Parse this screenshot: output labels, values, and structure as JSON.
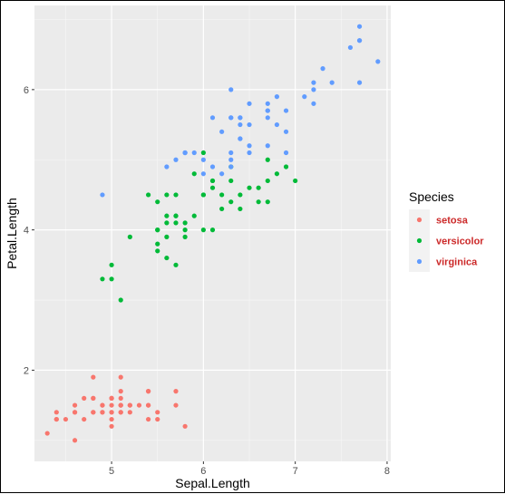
{
  "chart_data": {
    "type": "scatter",
    "title": "",
    "xlabel": "Sepal.Length",
    "ylabel": "Petal.Length",
    "xlim": [
      4.16,
      8.04
    ],
    "ylim": [
      0.7,
      7.2
    ],
    "x_ticks": [
      5,
      6,
      7,
      8
    ],
    "y_ticks": [
      2,
      4,
      6
    ],
    "grid": true,
    "legend": {
      "title": "Species",
      "position": "right"
    },
    "series": [
      {
        "name": "setosa",
        "color": "#F8766D",
        "points": [
          [
            5.1,
            1.4
          ],
          [
            4.9,
            1.4
          ],
          [
            4.7,
            1.3
          ],
          [
            4.6,
            1.5
          ],
          [
            5.0,
            1.4
          ],
          [
            5.4,
            1.7
          ],
          [
            4.6,
            1.4
          ],
          [
            5.0,
            1.5
          ],
          [
            4.4,
            1.4
          ],
          [
            4.9,
            1.5
          ],
          [
            5.4,
            1.5
          ],
          [
            4.8,
            1.6
          ],
          [
            4.8,
            1.4
          ],
          [
            4.3,
            1.1
          ],
          [
            5.8,
            1.2
          ],
          [
            5.7,
            1.5
          ],
          [
            5.4,
            1.3
          ],
          [
            5.1,
            1.4
          ],
          [
            5.7,
            1.7
          ],
          [
            5.1,
            1.5
          ],
          [
            5.4,
            1.7
          ],
          [
            5.1,
            1.5
          ],
          [
            4.6,
            1.0
          ],
          [
            5.1,
            1.7
          ],
          [
            4.8,
            1.9
          ],
          [
            5.0,
            1.6
          ],
          [
            5.0,
            1.6
          ],
          [
            5.2,
            1.5
          ],
          [
            5.2,
            1.4
          ],
          [
            4.7,
            1.6
          ],
          [
            4.8,
            1.6
          ],
          [
            5.4,
            1.5
          ],
          [
            5.2,
            1.5
          ],
          [
            5.5,
            1.4
          ],
          [
            4.9,
            1.5
          ],
          [
            5.0,
            1.2
          ],
          [
            5.5,
            1.3
          ],
          [
            4.9,
            1.4
          ],
          [
            4.4,
            1.3
          ],
          [
            5.1,
            1.5
          ],
          [
            5.0,
            1.3
          ],
          [
            4.5,
            1.3
          ],
          [
            4.4,
            1.3
          ],
          [
            5.0,
            1.6
          ],
          [
            5.1,
            1.9
          ],
          [
            4.8,
            1.4
          ],
          [
            5.1,
            1.6
          ],
          [
            4.6,
            1.4
          ],
          [
            5.3,
            1.5
          ],
          [
            5.0,
            1.4
          ]
        ]
      },
      {
        "name": "versicolor",
        "color": "#00BA38",
        "points": [
          [
            7.0,
            4.7
          ],
          [
            6.4,
            4.5
          ],
          [
            6.9,
            4.9
          ],
          [
            5.5,
            4.0
          ],
          [
            6.5,
            4.6
          ],
          [
            5.7,
            4.5
          ],
          [
            6.3,
            4.7
          ],
          [
            4.9,
            3.3
          ],
          [
            6.6,
            4.6
          ],
          [
            5.2,
            3.9
          ],
          [
            5.0,
            3.5
          ],
          [
            5.9,
            4.2
          ],
          [
            6.0,
            4.0
          ],
          [
            6.1,
            4.7
          ],
          [
            5.6,
            3.6
          ],
          [
            6.7,
            4.4
          ],
          [
            5.6,
            4.5
          ],
          [
            5.8,
            4.1
          ],
          [
            6.2,
            4.5
          ],
          [
            5.6,
            3.9
          ],
          [
            5.9,
            4.8
          ],
          [
            6.1,
            4.0
          ],
          [
            6.3,
            4.9
          ],
          [
            6.1,
            4.7
          ],
          [
            6.4,
            4.3
          ],
          [
            6.6,
            4.4
          ],
          [
            6.8,
            4.8
          ],
          [
            6.7,
            5.0
          ],
          [
            6.0,
            4.5
          ],
          [
            5.7,
            3.5
          ],
          [
            5.5,
            3.8
          ],
          [
            5.5,
            3.7
          ],
          [
            5.8,
            3.9
          ],
          [
            6.0,
            5.1
          ],
          [
            5.4,
            4.5
          ],
          [
            6.0,
            4.5
          ],
          [
            6.7,
            4.7
          ],
          [
            6.3,
            4.4
          ],
          [
            5.6,
            4.1
          ],
          [
            5.5,
            4.0
          ],
          [
            5.5,
            4.4
          ],
          [
            6.1,
            4.6
          ],
          [
            5.8,
            4.0
          ],
          [
            5.0,
            3.3
          ],
          [
            5.6,
            4.2
          ],
          [
            5.7,
            4.2
          ],
          [
            5.7,
            4.2
          ],
          [
            6.2,
            4.3
          ],
          [
            5.1,
            3.0
          ],
          [
            5.7,
            4.1
          ]
        ]
      },
      {
        "name": "virginica",
        "color": "#619CFF",
        "points": [
          [
            6.3,
            6.0
          ],
          [
            5.8,
            5.1
          ],
          [
            7.1,
            5.9
          ],
          [
            6.3,
            5.6
          ],
          [
            6.5,
            5.8
          ],
          [
            7.6,
            6.6
          ],
          [
            4.9,
            4.5
          ],
          [
            7.3,
            6.3
          ],
          [
            6.7,
            5.8
          ],
          [
            7.2,
            6.1
          ],
          [
            6.5,
            5.1
          ],
          [
            6.4,
            5.3
          ],
          [
            6.8,
            5.5
          ],
          [
            5.7,
            5.0
          ],
          [
            5.8,
            5.1
          ],
          [
            6.4,
            5.3
          ],
          [
            6.5,
            5.5
          ],
          [
            7.7,
            6.7
          ],
          [
            7.7,
            6.9
          ],
          [
            6.0,
            5.0
          ],
          [
            6.9,
            5.7
          ],
          [
            5.6,
            4.9
          ],
          [
            7.7,
            6.7
          ],
          [
            6.3,
            4.9
          ],
          [
            6.7,
            5.7
          ],
          [
            7.2,
            6.0
          ],
          [
            6.2,
            4.8
          ],
          [
            6.1,
            4.9
          ],
          [
            6.4,
            5.6
          ],
          [
            7.2,
            5.8
          ],
          [
            7.4,
            6.1
          ],
          [
            7.9,
            6.4
          ],
          [
            6.4,
            5.6
          ],
          [
            6.3,
            5.1
          ],
          [
            6.1,
            5.6
          ],
          [
            7.7,
            6.1
          ],
          [
            6.3,
            5.6
          ],
          [
            6.4,
            5.5
          ],
          [
            6.0,
            4.8
          ],
          [
            6.9,
            5.4
          ],
          [
            6.7,
            5.6
          ],
          [
            6.9,
            5.1
          ],
          [
            5.8,
            5.1
          ],
          [
            6.8,
            5.9
          ],
          [
            6.7,
            5.7
          ],
          [
            6.7,
            5.2
          ],
          [
            6.3,
            5.0
          ],
          [
            6.5,
            5.2
          ],
          [
            6.2,
            5.4
          ],
          [
            5.9,
            5.1
          ]
        ]
      }
    ]
  }
}
